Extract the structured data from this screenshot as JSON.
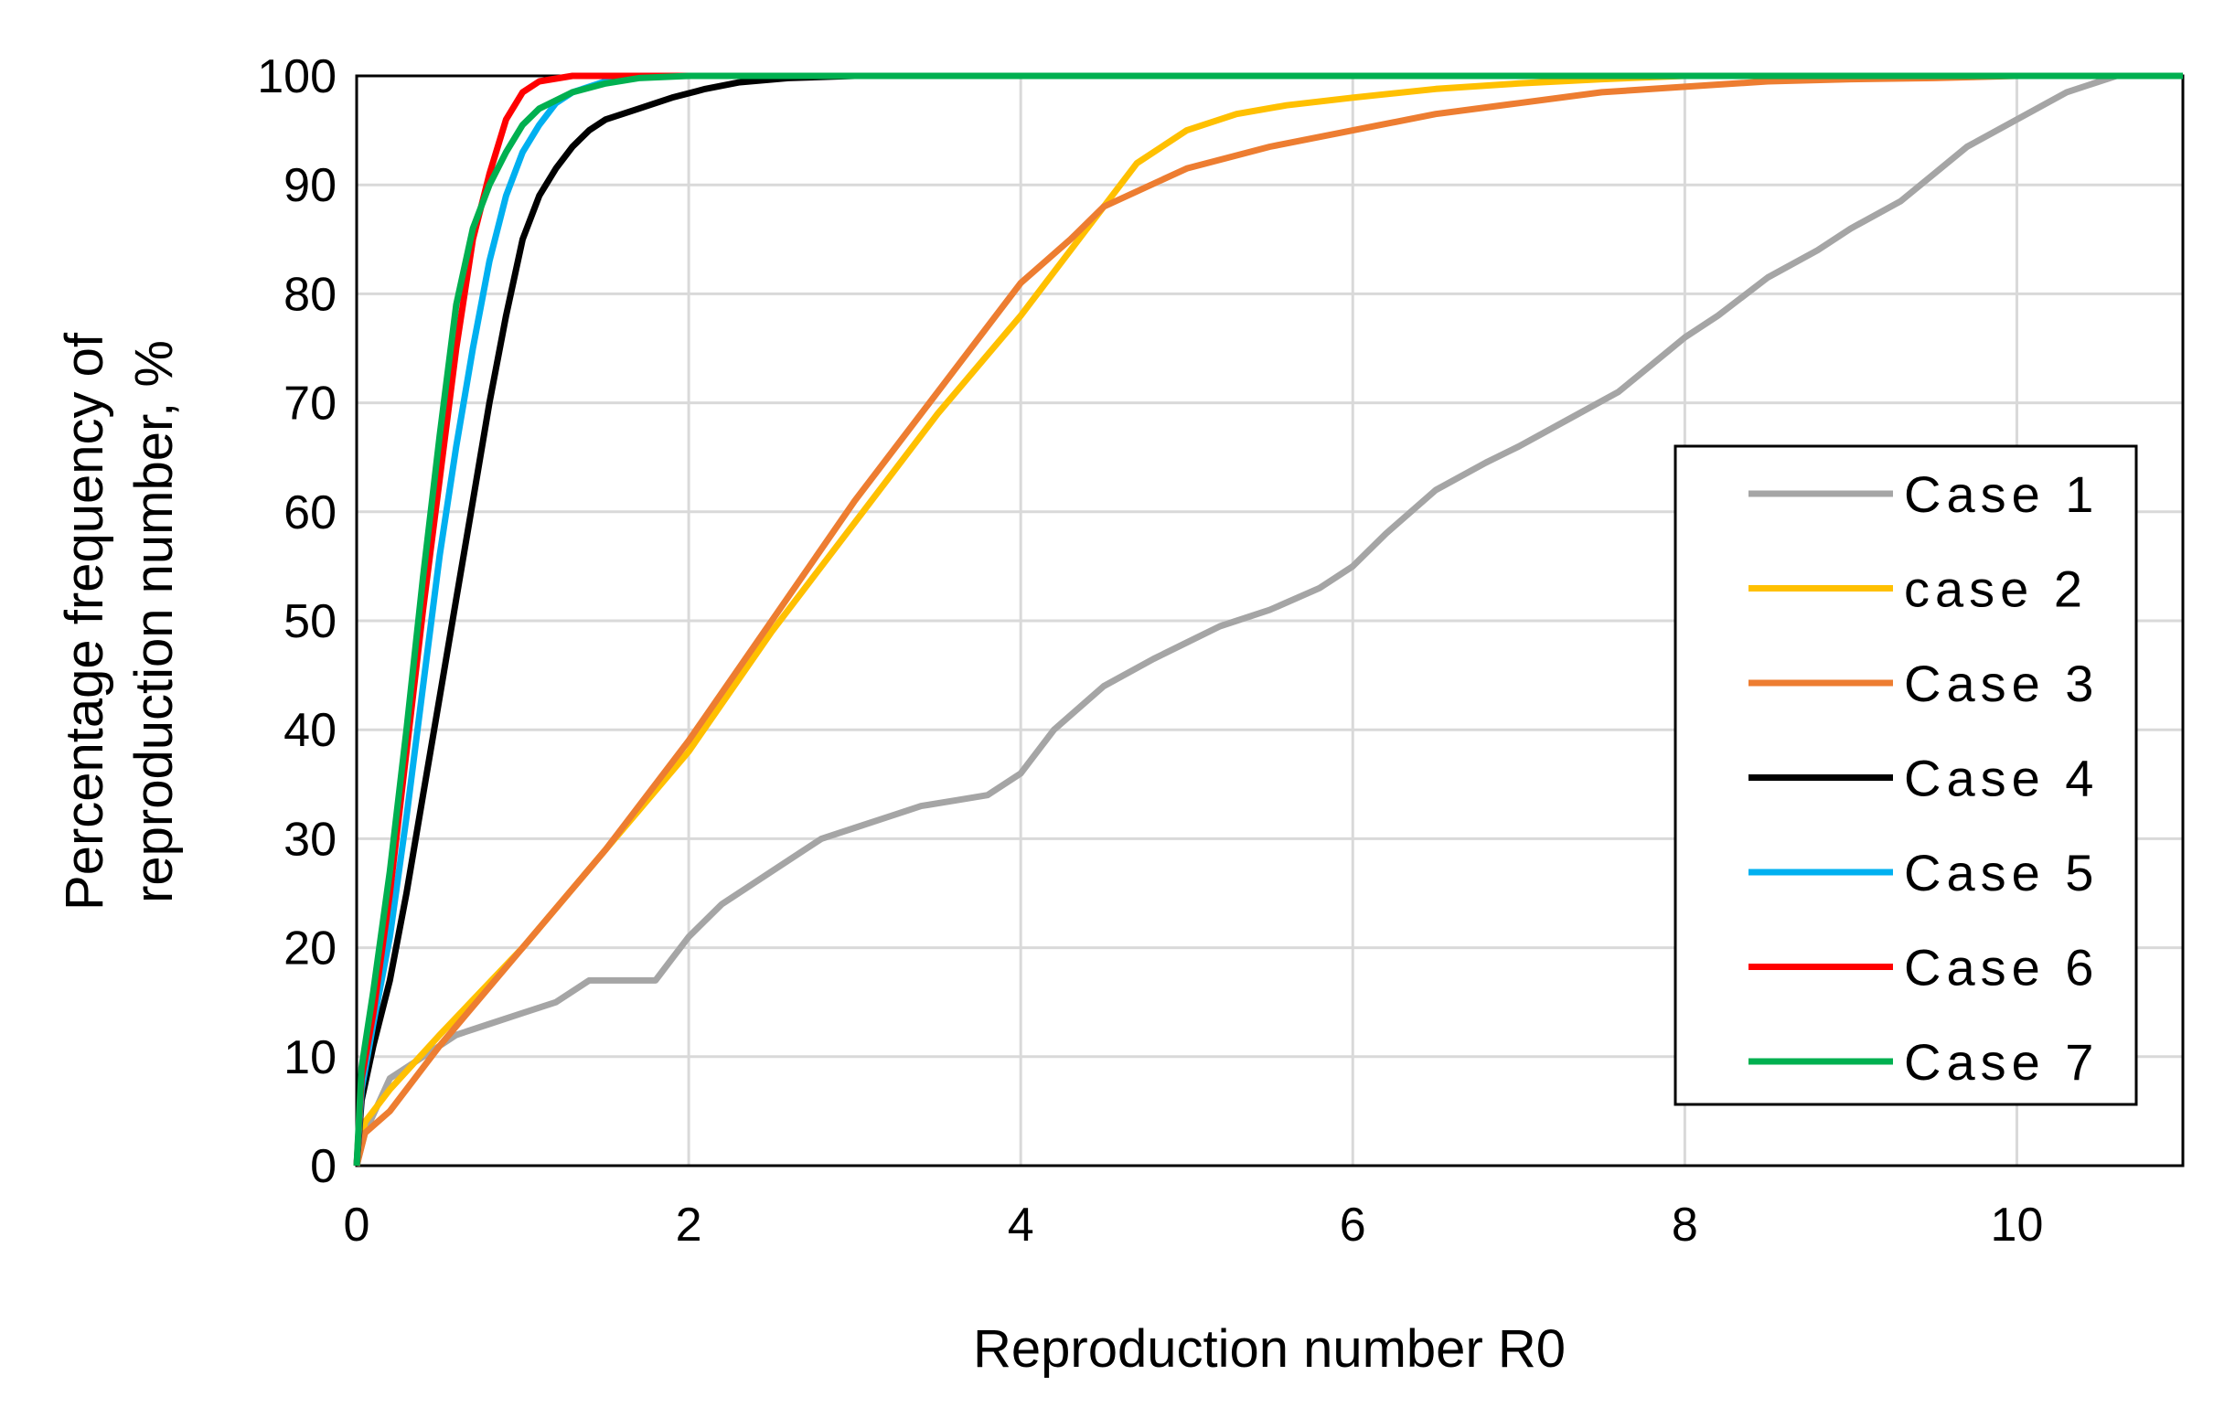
{
  "chart_data": {
    "type": "line",
    "title": "",
    "xlabel": "Reproduction number R0",
    "ylabel_lines": [
      "Percentage frequency of",
      "reproduction number, %"
    ],
    "xlim": [
      0,
      11
    ],
    "ylim": [
      0,
      100
    ],
    "xticks": [
      0,
      2,
      4,
      6,
      8,
      10
    ],
    "yticks": [
      0,
      10,
      20,
      30,
      40,
      50,
      60,
      70,
      80,
      90,
      100
    ],
    "grid": true,
    "legend_position": "right",
    "series": [
      {
        "name": "Case 1",
        "color": "#a5a5a5",
        "x": [
          0,
          0.05,
          0.2,
          0.4,
          0.6,
          0.8,
          1.0,
          1.2,
          1.4,
          1.8,
          1.9,
          2.0,
          2.2,
          2.4,
          2.6,
          2.8,
          3.0,
          3.2,
          3.4,
          3.6,
          3.8,
          4.0,
          4.2,
          4.5,
          4.8,
          5.0,
          5.2,
          5.5,
          5.8,
          6.0,
          6.2,
          6.5,
          6.8,
          7.0,
          7.3,
          7.6,
          7.8,
          8.0,
          8.2,
          8.5,
          8.8,
          9.0,
          9.3,
          9.5,
          9.7,
          10.0,
          10.3,
          10.6,
          11.0
        ],
        "y": [
          0,
          3,
          8,
          10,
          12,
          13,
          14,
          15,
          17,
          17,
          19,
          21,
          24,
          26,
          28,
          30,
          31,
          32,
          33,
          33.5,
          34,
          36,
          40,
          44,
          46.5,
          48,
          49.5,
          51,
          53,
          55,
          58,
          62,
          64.5,
          66,
          68.5,
          71,
          73.5,
          76,
          78,
          81.5,
          84,
          86,
          88.5,
          91,
          93.5,
          96,
          98.5,
          100,
          100
        ]
      },
      {
        "name": "case 2",
        "color": "#ffc000",
        "x": [
          0,
          0.05,
          0.2,
          0.5,
          1.0,
          1.5,
          2.0,
          2.5,
          3.0,
          3.5,
          4.0,
          4.3,
          4.5,
          4.7,
          5.0,
          5.3,
          5.6,
          6.0,
          6.5,
          7.0,
          7.5,
          8.0,
          8.5,
          11.0
        ],
        "y": [
          0,
          4,
          7,
          12,
          20,
          29,
          38,
          49,
          59,
          69,
          78,
          84,
          88,
          92,
          95,
          96.5,
          97.3,
          98,
          98.8,
          99.3,
          99.7,
          100,
          100,
          100
        ]
      },
      {
        "name": "Case 3",
        "color": "#ed7d31",
        "x": [
          0,
          0.05,
          0.2,
          0.5,
          1.0,
          1.5,
          2.0,
          2.5,
          3.0,
          3.5,
          4.0,
          4.3,
          4.5,
          5.0,
          5.5,
          6.0,
          6.5,
          7.0,
          7.5,
          8.0,
          8.5,
          9.0,
          9.5,
          10.0,
          10.6,
          11.0
        ],
        "y": [
          0,
          3,
          5,
          11,
          20,
          29,
          39,
          50,
          61,
          71,
          81,
          85,
          88,
          91.5,
          93.5,
          95,
          96.5,
          97.5,
          98.5,
          99,
          99.5,
          99.7,
          99.8,
          100,
          100,
          100
        ]
      },
      {
        "name": "Case 4",
        "color": "#000000",
        "x": [
          0,
          0.03,
          0.1,
          0.2,
          0.3,
          0.4,
          0.5,
          0.6,
          0.7,
          0.8,
          0.9,
          1.0,
          1.1,
          1.2,
          1.3,
          1.4,
          1.5,
          1.7,
          1.9,
          2.1,
          2.3,
          2.6,
          3.0,
          3.2,
          11.0
        ],
        "y": [
          0,
          6,
          11,
          17,
          25,
          34,
          43,
          52,
          61,
          70,
          78,
          85,
          89,
          91.5,
          93.5,
          95,
          96,
          97,
          98,
          98.8,
          99.4,
          99.8,
          100,
          100,
          100
        ]
      },
      {
        "name": "Case 5",
        "color": "#00b0f0",
        "x": [
          0,
          0.03,
          0.1,
          0.2,
          0.3,
          0.4,
          0.5,
          0.6,
          0.7,
          0.8,
          0.9,
          1.0,
          1.1,
          1.2,
          1.3,
          1.5,
          1.8,
          11.0
        ],
        "y": [
          0,
          7,
          13,
          21,
          32,
          44,
          56,
          66,
          75,
          83,
          89,
          93,
          95.5,
          97.5,
          98.5,
          99.5,
          100,
          100
        ]
      },
      {
        "name": "Case 6",
        "color": "#ff0000",
        "x": [
          0,
          0.03,
          0.1,
          0.2,
          0.3,
          0.4,
          0.5,
          0.6,
          0.7,
          0.8,
          0.9,
          1.0,
          1.1,
          1.3,
          11.0
        ],
        "y": [
          0,
          8,
          14,
          25,
          38,
          51,
          63,
          75,
          85,
          91,
          96,
          98.5,
          99.5,
          100,
          100
        ]
      },
      {
        "name": "Case 7",
        "color": "#00b050",
        "x": [
          0,
          0.03,
          0.1,
          0.2,
          0.3,
          0.4,
          0.5,
          0.6,
          0.7,
          0.8,
          0.9,
          1.0,
          1.1,
          1.3,
          1.5,
          1.7,
          2.0,
          11.0
        ],
        "y": [
          0,
          9,
          16,
          27,
          40,
          54,
          67,
          79,
          86,
          90,
          93,
          95.5,
          97,
          98.5,
          99.3,
          99.8,
          100,
          100
        ]
      }
    ]
  }
}
